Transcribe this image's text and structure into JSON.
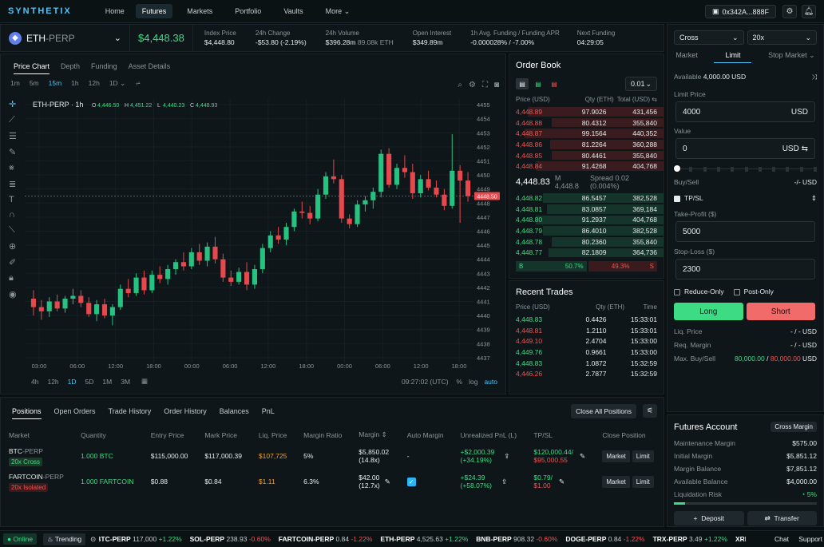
{
  "nav": {
    "logo": "SYNTHETIX",
    "items": [
      "Home",
      "Futures",
      "Markets",
      "Portfolio",
      "Vaults",
      "More"
    ],
    "wallet": "0x342A...888F"
  },
  "market": {
    "pair": "ETH",
    "pair_suffix": "-PERP",
    "price": "$4,448.38",
    "stats": [
      {
        "label": "Index Price",
        "value": "$4,448.80",
        "color": "normal"
      },
      {
        "label": "24h Change",
        "value": "-$53.80 (-2.19%)",
        "color": "red"
      },
      {
        "label": "24h Volume",
        "value": "$396.28m",
        "extra": "89.08k ETH",
        "color": "normal"
      },
      {
        "label": "Open Interest",
        "value": "$349.89m",
        "color": "normal"
      },
      {
        "label": "1h Avg. Funding / Funding APR",
        "value": "-0.000028% / -7.00%",
        "color": "red"
      },
      {
        "label": "Next Funding",
        "value": "04:29:05",
        "color": "normal"
      }
    ]
  },
  "chart_tabs": [
    "Price Chart",
    "Depth",
    "Funding",
    "Asset Details"
  ],
  "timeframes": [
    "1m",
    "5m",
    "15m",
    "1h",
    "12h",
    "1D"
  ],
  "bottom_timeframes": [
    "4h",
    "12h",
    "1D",
    "5D",
    "1M",
    "3M"
  ],
  "chart_footer": {
    "time": "09:27:02 (UTC)",
    "pct": "%",
    "log": "log",
    "auto": "auto"
  },
  "chart_data": {
    "type": "candlestick",
    "title": "ETH-PERP",
    "interval": "1h",
    "ohlc_labels": {
      "o": "4,446.50",
      "h": "4,451.22",
      "l": "4,440.23",
      "c": "4,448.93"
    },
    "current_price_label": "4448.50",
    "current_price": 4448.5,
    "ylim": [
      4436.6,
      4455.4
    ],
    "y_ticks": [
      4455,
      4454,
      4453,
      4452,
      4451,
      4450,
      4449,
      4448,
      4447,
      4446,
      4445,
      4444,
      4443,
      4442,
      4441,
      4440,
      4439,
      4438,
      4437
    ],
    "x_ticks": [
      "03:00",
      "06:00",
      "12:00",
      "18:00",
      "00:00",
      "06:00",
      "12:00",
      "18:00",
      "00:00",
      "06:00",
      "12:00",
      "18:00"
    ],
    "candles": [
      [
        4441.2,
        4441.8,
        4440.0,
        4440.6
      ],
      [
        4440.6,
        4441.1,
        4439.7,
        4440.3
      ],
      [
        4440.3,
        4441.3,
        4439.9,
        4441.0
      ],
      [
        4441.0,
        4441.5,
        4440.3,
        4440.5
      ],
      [
        4440.5,
        4441.4,
        4440.2,
        4441.2
      ],
      [
        4441.2,
        4441.9,
        4440.8,
        4441.4
      ],
      [
        4441.4,
        4441.8,
        4440.6,
        4440.9
      ],
      [
        4440.9,
        4441.3,
        4439.9,
        4440.1
      ],
      [
        4440.1,
        4441.1,
        4439.6,
        4440.8
      ],
      [
        4440.8,
        4441.2,
        4439.8,
        4440.0
      ],
      [
        4440.0,
        4440.8,
        4439.3,
        4440.6
      ],
      [
        4440.6,
        4442.2,
        4440.4,
        4441.9
      ],
      [
        4441.9,
        4442.6,
        4441.3,
        4441.6
      ],
      [
        4441.6,
        4443.0,
        4441.4,
        4442.7
      ],
      [
        4442.7,
        4443.2,
        4441.5,
        4441.8
      ],
      [
        4441.8,
        4443.2,
        4441.6,
        4442.9
      ],
      [
        4442.9,
        4443.5,
        4442.3,
        4442.6
      ],
      [
        4442.6,
        4443.6,
        4442.2,
        4443.3
      ],
      [
        4443.3,
        4444.0,
        4442.9,
        4443.8
      ],
      [
        4443.8,
        4444.5,
        4443.2,
        4443.5
      ],
      [
        4443.5,
        4444.8,
        4443.3,
        4444.5
      ],
      [
        4444.5,
        4445.1,
        4443.6,
        4443.9
      ],
      [
        4443.9,
        4445.2,
        4443.5,
        4444.9
      ],
      [
        4444.9,
        4445.6,
        4443.7,
        4444.0
      ],
      [
        4444.0,
        4444.4,
        4442.4,
        4442.7
      ],
      [
        4442.7,
        4443.2,
        4442.1,
        4442.4
      ],
      [
        4442.4,
        4443.4,
        4442.2,
        4443.1
      ],
      [
        4443.1,
        4443.8,
        4441.8,
        4442.2
      ],
      [
        4442.2,
        4443.6,
        4441.9,
        4443.3
      ],
      [
        4443.3,
        4445.1,
        4443.0,
        4444.8
      ],
      [
        4444.8,
        4446.0,
        4444.5,
        4445.7
      ],
      [
        4445.7,
        4446.3,
        4445.1,
        4445.4
      ],
      [
        4445.4,
        4446.6,
        4445.0,
        4446.3
      ],
      [
        4446.3,
        4447.6,
        4446.0,
        4447.4
      ],
      [
        4447.4,
        4448.1,
        4446.9,
        4447.3
      ],
      [
        4447.3,
        4447.8,
        4446.5,
        4446.9
      ],
      [
        4446.9,
        4449.0,
        4446.7,
        4448.6
      ],
      [
        4448.6,
        4450.2,
        4448.3,
        4449.9
      ],
      [
        4449.9,
        4451.1,
        4449.4,
        4449.7
      ],
      [
        4449.7,
        4450.0,
        4446.6,
        4446.9
      ],
      [
        4446.9,
        4447.2,
        4446.2,
        4446.5
      ],
      [
        4446.5,
        4448.2,
        4446.3,
        4447.9
      ],
      [
        4447.9,
        4448.5,
        4447.4,
        4448.2
      ],
      [
        4448.2,
        4449.1,
        4447.6,
        4448.8
      ],
      [
        4448.8,
        4451.8,
        4448.4,
        4451.5
      ],
      [
        4451.5,
        4451.9,
        4449.1,
        4449.3
      ],
      [
        4449.3,
        4450.8,
        4449.0,
        4450.5
      ],
      [
        4450.5,
        4451.4,
        4449.8,
        4450.2
      ],
      [
        4450.2,
        4450.8,
        4448.3,
        4448.7
      ],
      [
        4448.7,
        4450.0,
        4448.4,
        4449.7
      ],
      [
        4449.7,
        4450.3,
        4448.9,
        4449.1
      ],
      [
        4449.1,
        4449.6,
        4448.4,
        4448.6
      ],
      [
        4448.6,
        4449.0,
        4447.5,
        4447.8
      ],
      [
        4447.8,
        4452.9,
        4447.6,
        4450.3
      ],
      [
        4450.3,
        4450.7,
        4446.6,
        4449.6
      ],
      [
        4449.6,
        4450.2,
        4448.1,
        4448.5
      ]
    ]
  },
  "orderbook": {
    "title": "Order Book",
    "tick": "0.01",
    "headers": [
      "Price (USD)",
      "Qty (ETH)",
      "Total (USD)"
    ],
    "asks": [
      [
        "4,448.89",
        "97.9026",
        "431,456"
      ],
      [
        "4,448.88",
        "80.4312",
        "355,840"
      ],
      [
        "4,448.87",
        "99.1564",
        "440,352"
      ],
      [
        "4,448.86",
        "81.2264",
        "360,288"
      ],
      [
        "4,448.85",
        "80.4461",
        "355,840"
      ],
      [
        "4,448.84",
        "91.4268",
        "404,768"
      ]
    ],
    "mid": "4,448.83",
    "mark": "M 4,448.8",
    "spread": "Spread 0.02 (0.004%)",
    "bids": [
      [
        "4,448.82",
        "86.5457",
        "382,528"
      ],
      [
        "4,448.81",
        "83.0857",
        "369,184"
      ],
      [
        "4,448.80",
        "91.2937",
        "404,768"
      ],
      [
        "4,448.79",
        "86.4010",
        "382,528"
      ],
      [
        "4,448.78",
        "80.2360",
        "355,840"
      ],
      [
        "4,448.77",
        "82.1809",
        "364,736"
      ]
    ],
    "buy_label": "B",
    "buy_pct": "50.7%",
    "sell_pct": "49.3%",
    "sell_label": "S"
  },
  "recent_trades": {
    "title": "Recent Trades",
    "headers": [
      "Price (USD)",
      "Qty (ETH)",
      "Time"
    ],
    "rows": [
      [
        "4,448.83",
        "0.4426",
        "15:33:01",
        "g"
      ],
      [
        "4,448.81",
        "1.2110",
        "15:33:01",
        "r"
      ],
      [
        "4,449.10",
        "2.4704",
        "15:33:00",
        "r"
      ],
      [
        "4,449.76",
        "0.9661",
        "15:33:00",
        "g"
      ],
      [
        "4,448.83",
        "1.0872",
        "15:32:59",
        "g"
      ],
      [
        "4,446.26",
        "2.7877",
        "15:32:59",
        "r"
      ]
    ]
  },
  "positions": {
    "tabs": [
      "Positions",
      "Open Orders",
      "Trade History",
      "Order History",
      "Balances",
      "PnL"
    ],
    "close_all": "Close All Positions",
    "headers": [
      "Market",
      "Quantity",
      "Entry Price",
      "Mark Price",
      "Liq. Price",
      "Margin Ratio",
      "Margin",
      "Auto Margin",
      "Unrealized PnL (L)",
      "TP/SL",
      "Close Position"
    ],
    "rows": [
      {
        "market": "BTC",
        "suffix": "-PERP",
        "lev": "20x Cross",
        "levtype": "green",
        "qty": "1.000 BTC",
        "entry": "$115,000.00",
        "mark": "$117,000.39",
        "liq": "$107,725",
        "ratio": "5%",
        "margin": "$5,850.02",
        "margin2": "(14.8x)",
        "auto": "-",
        "pnl": "+$2,000.39",
        "pnl2": "(+34.19%)",
        "tp": "$120,000.44/",
        "sl": "$95,000.55",
        "checked": false
      },
      {
        "market": "FARTCOIN",
        "suffix": "-PERP",
        "lev": "20x Isolated",
        "levtype": "red",
        "qty": "1.000 FARTCOIN",
        "entry": "$0.88",
        "mark": "$0.84",
        "liq": "$1.11",
        "ratio": "6.3%",
        "margin": "$42.00",
        "margin2": "(12.7x)",
        "auto": "",
        "pnl": "+$24.39",
        "pnl2": "(+58.07%)",
        "tp": "$0.79/",
        "sl": "$1.00",
        "checked": true
      }
    ],
    "market_btn": "Market",
    "limit_btn": "Limit"
  },
  "order_form": {
    "margin_mode": "Cross",
    "leverage": "20x",
    "types": [
      "Market",
      "Limit",
      "Stop Market"
    ],
    "available_label": "Available",
    "available": "4,000.00 USD",
    "limit_label": "Limit Price",
    "limit_value": "4000",
    "limit_unit": "USD",
    "value_label": "Value",
    "value": "0",
    "value_unit": "USD",
    "buysell_label": "Buy/Sell",
    "buysell_value": "-/- USD",
    "slider_fill": 0.0,
    "tpsl_label": "TP/SL",
    "tp_label": "Take-Profit ($)",
    "tp_value": "5000",
    "sl_label": "Stop-Loss ($)",
    "sl_value": "2300",
    "reduce_only": "Reduce-Only",
    "post_only": "Post-Only",
    "long": "Long",
    "short": "Short",
    "liq_label": "Liq. Price",
    "liq_value": "- / - USD",
    "req_label": "Req. Margin",
    "req_value": "- / - USD",
    "max_label": "Max. Buy/Sell",
    "max_buy": "80,000.00",
    "max_sep": " / ",
    "max_sell": "80,000.00",
    "max_unit": " USD"
  },
  "futures_account": {
    "title": "Futures Account",
    "mode": "Cross Margin",
    "rows": [
      [
        "Maintenance Margin",
        "$575.00"
      ],
      [
        "Initial Margin",
        "$5,851.12"
      ],
      [
        "Margin Balance",
        "$7,851.12"
      ],
      [
        "Available Balance",
        "$4,000.00"
      ]
    ],
    "liq_risk_label": "Liquidation Risk",
    "liq_risk": "5%",
    "liq_risk_fraction": 0.05,
    "deposit": "Deposit",
    "transfer": "Transfer"
  },
  "status_bar": {
    "online": "Online",
    "trending": "Trending",
    "tickers": [
      {
        "s": "BTC-PERP",
        "p": "117,000",
        "c": "+1.22%",
        "g": true
      },
      {
        "s": "SOL-PERP",
        "p": "238.93",
        "c": "-0.60%",
        "g": false
      },
      {
        "s": "FARTCOIN-PERP",
        "p": "0.84",
        "c": "-1.22%",
        "g": false
      },
      {
        "s": "ETH-PERP",
        "p": "4,525.63",
        "c": "+1.22%",
        "g": true
      },
      {
        "s": "BNB-PERP",
        "p": "908.32",
        "c": "-0.60%",
        "g": false
      },
      {
        "s": "DOGE-PERP",
        "p": "0.84",
        "c": "-1.22%",
        "g": false
      },
      {
        "s": "TRX-PERP",
        "p": "3.49",
        "c": "+1.22%",
        "g": true
      },
      {
        "s": "XRP-PERP",
        "p": "",
        "c": "",
        "g": true
      }
    ],
    "chat": "Chat",
    "support": "Support"
  },
  "colors": {
    "up": "#26c281",
    "down": "#e5484d",
    "accent": "#4fc3f7"
  }
}
